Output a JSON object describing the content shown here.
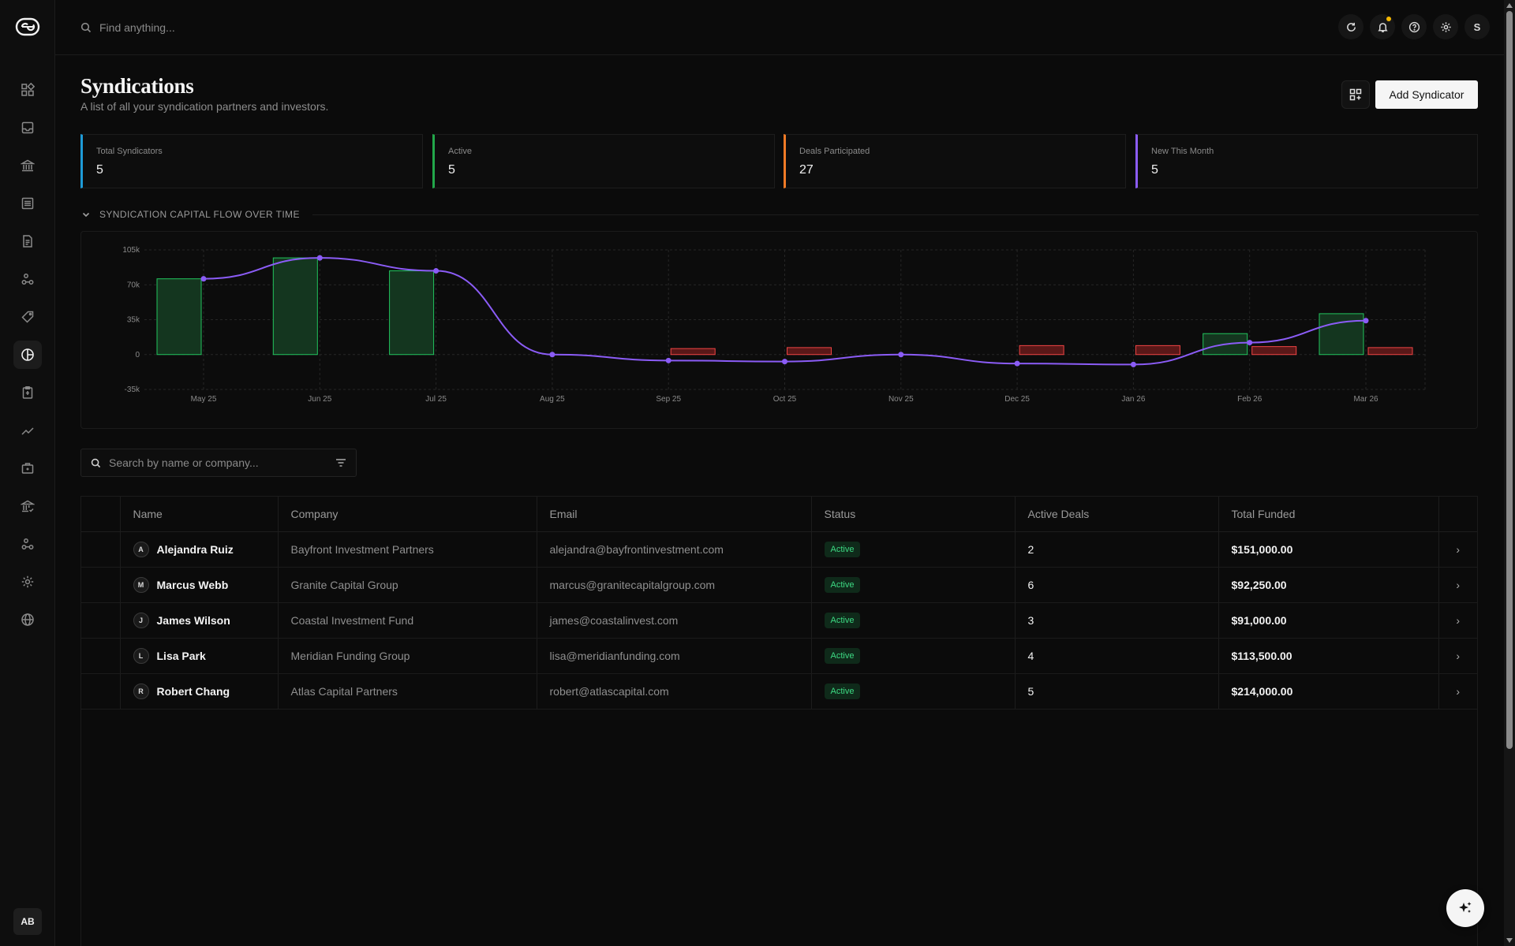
{
  "search": {
    "placeholder": "Find anything..."
  },
  "topbar": {
    "avatar": "S"
  },
  "sidebar": {
    "items": [
      {
        "icon": "dashboard-icon"
      },
      {
        "icon": "inbox-icon"
      },
      {
        "icon": "bank-icon"
      },
      {
        "icon": "list-icon"
      },
      {
        "icon": "document-icon"
      },
      {
        "icon": "nodes-icon"
      },
      {
        "icon": "tags-icon"
      },
      {
        "icon": "syndications-icon"
      },
      {
        "icon": "clipboard-icon"
      },
      {
        "icon": "trend-icon"
      },
      {
        "icon": "briefcase-icon"
      },
      {
        "icon": "bank-check-icon"
      },
      {
        "icon": "share-icon"
      },
      {
        "icon": "gear-icon"
      },
      {
        "icon": "globe-icon"
      }
    ],
    "user_initials": "AB"
  },
  "header": {
    "title": "Syndications",
    "subtitle": "A list of all your syndication partners and investors.",
    "add_button": "Add Syndicator"
  },
  "stats": [
    {
      "label": "Total Syndicators",
      "value": "5",
      "color": "#1e9bd7"
    },
    {
      "label": "Active",
      "value": "5",
      "color": "#22a74a"
    },
    {
      "label": "Deals Participated",
      "value": "27",
      "color": "#f07a26"
    },
    {
      "label": "New This Month",
      "value": "5",
      "color": "#8b5cf6"
    }
  ],
  "section": {
    "title": "SYNDICATION CAPITAL FLOW OVER TIME"
  },
  "chart_data": {
    "type": "bar",
    "categories": [
      "May 25",
      "Jun 25",
      "Jul 25",
      "Aug 25",
      "Sep 25",
      "Oct 25",
      "Nov 25",
      "Dec 25",
      "Jan 26",
      "Feb 26",
      "Mar 26"
    ],
    "ylim": [
      -35000,
      105000
    ],
    "y_ticks": [
      "105k",
      "70k",
      "35k",
      "0",
      "-35k"
    ],
    "y_tick_values": [
      105000,
      70000,
      35000,
      0,
      -35000
    ],
    "series": [
      {
        "type": "bar",
        "color": "#22c55e",
        "values": [
          76000,
          97000,
          84000,
          0,
          0,
          0,
          0,
          0,
          0,
          21000,
          41000
        ]
      },
      {
        "type": "bar",
        "color": "#ef4444",
        "values": [
          0,
          0,
          0,
          0,
          6000,
          7000,
          0,
          9000,
          9000,
          8000,
          7000
        ]
      },
      {
        "type": "line",
        "color": "#8b5cf6",
        "values": [
          76000,
          97000,
          84000,
          0,
          -6000,
          -7000,
          0,
          -9000,
          -10000,
          12000,
          34000
        ]
      }
    ],
    "grid": true,
    "legend": "none"
  },
  "table_search": {
    "placeholder": "Search by name or company..."
  },
  "table": {
    "columns": [
      "Name",
      "Company",
      "Email",
      "Status",
      "Active Deals",
      "Total Funded"
    ],
    "rows": [
      {
        "initial": "A",
        "name": "Alejandra Ruiz",
        "company": "Bayfront Investment Partners",
        "email": "alejandra@bayfrontinvestment.com",
        "status": "Active",
        "deals": "2",
        "funded": "$151,000.00"
      },
      {
        "initial": "M",
        "name": "Marcus Webb",
        "company": "Granite Capital Group",
        "email": "marcus@granitecapitalgroup.com",
        "status": "Active",
        "deals": "6",
        "funded": "$92,250.00"
      },
      {
        "initial": "J",
        "name": "James Wilson",
        "company": "Coastal Investment Fund",
        "email": "james@coastalinvest.com",
        "status": "Active",
        "deals": "3",
        "funded": "$91,000.00"
      },
      {
        "initial": "L",
        "name": "Lisa Park",
        "company": "Meridian Funding Group",
        "email": "lisa@meridianfunding.com",
        "status": "Active",
        "deals": "4",
        "funded": "$113,500.00"
      },
      {
        "initial": "R",
        "name": "Robert Chang",
        "company": "Atlas Capital Partners",
        "email": "robert@atlascapital.com",
        "status": "Active",
        "deals": "5",
        "funded": "$214,000.00"
      }
    ]
  }
}
